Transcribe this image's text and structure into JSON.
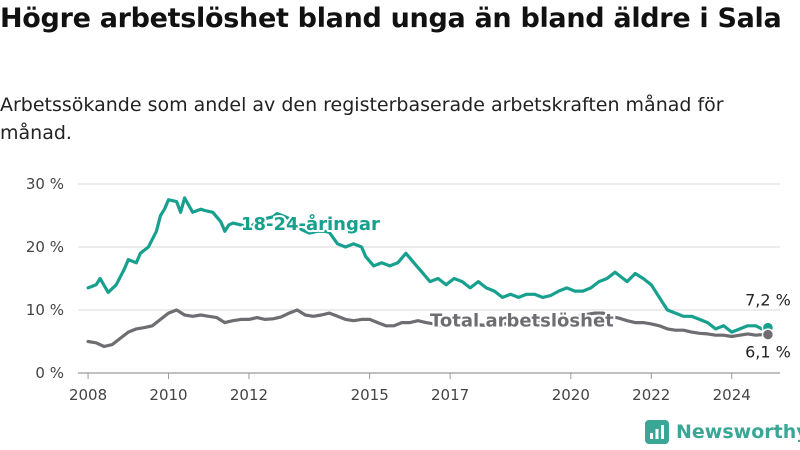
{
  "title": "Högre arbetslöshet bland unga än bland äldre i Sala",
  "subtitle": "Arbetssökande som andel av den registerbaserade arbetskraften månad för månad.",
  "brand": {
    "name": "Newsworthy",
    "color": "#3aa796"
  },
  "chart_data": {
    "type": "line",
    "ylim": [
      0,
      30
    ],
    "xlim": [
      2007.75,
      2025.2
    ],
    "y_ticks": [
      0,
      10,
      20,
      30
    ],
    "y_tick_labels": [
      "0 %",
      "10 %",
      "20 %",
      "30 %"
    ],
    "x_ticks": [
      2008,
      2010,
      2012,
      2015,
      2017,
      2020,
      2022,
      2024
    ],
    "x_tick_labels": [
      "2008",
      "2010",
      "2012",
      "2015",
      "2017",
      "2020",
      "2022",
      "2024"
    ],
    "grid": true,
    "series": [
      {
        "name": "18-24-åringar",
        "color": "#18a08f",
        "end_label": "7,2 %",
        "x": [
          2008.0,
          2008.2,
          2008.3,
          2008.5,
          2008.7,
          2008.9,
          2009.0,
          2009.2,
          2009.3,
          2009.5,
          2009.7,
          2009.8,
          2009.9,
          2010.0,
          2010.2,
          2010.3,
          2010.4,
          2010.6,
          2010.8,
          2010.9,
          2011.1,
          2011.3,
          2011.4,
          2011.5,
          2011.6,
          2011.8,
          2012.0,
          2012.2,
          2012.4,
          2012.6,
          2012.7,
          2012.9,
          2013.1,
          2013.3,
          2013.5,
          2013.7,
          2013.9,
          2014.0,
          2014.2,
          2014.4,
          2014.6,
          2014.8,
          2014.9,
          2015.1,
          2015.3,
          2015.5,
          2015.7,
          2015.9,
          2016.1,
          2016.3,
          2016.5,
          2016.7,
          2016.9,
          2017.1,
          2017.3,
          2017.5,
          2017.7,
          2017.9,
          2018.1,
          2018.3,
          2018.5,
          2018.7,
          2018.9,
          2019.1,
          2019.3,
          2019.5,
          2019.7,
          2019.9,
          2020.1,
          2020.3,
          2020.5,
          2020.7,
          2020.9,
          2021.1,
          2021.2,
          2021.4,
          2021.6,
          2021.8,
          2022.0,
          2022.2,
          2022.4,
          2022.6,
          2022.8,
          2023.0,
          2023.2,
          2023.4,
          2023.6,
          2023.8,
          2024.0,
          2024.2,
          2024.4,
          2024.6,
          2024.75,
          2024.9
        ],
        "values": [
          13.5,
          14.0,
          15.0,
          12.8,
          14.0,
          16.5,
          18.0,
          17.5,
          19.0,
          20.0,
          22.5,
          25.0,
          26.0,
          27.5,
          27.2,
          25.5,
          27.8,
          25.5,
          26.0,
          25.8,
          25.5,
          24.0,
          22.5,
          23.5,
          23.8,
          23.5,
          23.0,
          24.0,
          24.5,
          24.8,
          25.3,
          24.8,
          24.2,
          22.8,
          22.2,
          22.5,
          22.5,
          22.3,
          20.5,
          20.0,
          20.5,
          20.0,
          18.5,
          17.0,
          17.5,
          17.0,
          17.5,
          19.0,
          17.5,
          16.0,
          14.5,
          15.0,
          14.0,
          15.0,
          14.5,
          13.5,
          14.5,
          13.5,
          13.0,
          12.0,
          12.5,
          12.0,
          12.5,
          12.5,
          12.0,
          12.3,
          13.0,
          13.5,
          13.0,
          13.0,
          13.5,
          14.5,
          15.0,
          16.0,
          15.5,
          14.5,
          15.8,
          15.0,
          14.0,
          12.0,
          10.0,
          9.5,
          9.0,
          9.0,
          8.5,
          8.0,
          7.0,
          7.5,
          6.5,
          7.0,
          7.5,
          7.5,
          7.0,
          7.2
        ]
      },
      {
        "name": "Total arbetslöshet",
        "color": "#6e6e72",
        "end_label": "6,1 %",
        "x": [
          2008.0,
          2008.2,
          2008.4,
          2008.6,
          2008.8,
          2009.0,
          2009.2,
          2009.4,
          2009.6,
          2009.8,
          2010.0,
          2010.2,
          2010.4,
          2010.6,
          2010.8,
          2011.0,
          2011.2,
          2011.4,
          2011.6,
          2011.8,
          2012.0,
          2012.2,
          2012.4,
          2012.6,
          2012.8,
          2013.0,
          2013.2,
          2013.4,
          2013.6,
          2013.8,
          2014.0,
          2014.2,
          2014.4,
          2014.6,
          2014.8,
          2015.0,
          2015.2,
          2015.4,
          2015.6,
          2015.8,
          2016.0,
          2016.2,
          2016.4,
          2016.6,
          2016.8,
          2017.0,
          2017.2,
          2017.4,
          2017.6,
          2017.8,
          2018.0,
          2018.2,
          2018.4,
          2018.6,
          2018.8,
          2019.0,
          2019.2,
          2019.4,
          2019.6,
          2019.8,
          2020.0,
          2020.2,
          2020.4,
          2020.6,
          2020.8,
          2021.0,
          2021.2,
          2021.4,
          2021.6,
          2021.8,
          2022.0,
          2022.2,
          2022.4,
          2022.6,
          2022.8,
          2023.0,
          2023.2,
          2023.4,
          2023.6,
          2023.8,
          2024.0,
          2024.2,
          2024.4,
          2024.6,
          2024.75,
          2024.9
        ],
        "values": [
          5.0,
          4.8,
          4.2,
          4.5,
          5.5,
          6.5,
          7.0,
          7.2,
          7.5,
          8.5,
          9.5,
          10.0,
          9.2,
          9.0,
          9.2,
          9.0,
          8.8,
          8.0,
          8.3,
          8.5,
          8.5,
          8.8,
          8.5,
          8.6,
          8.9,
          9.5,
          10.0,
          9.2,
          9.0,
          9.2,
          9.5,
          9.0,
          8.5,
          8.3,
          8.5,
          8.5,
          8.0,
          7.5,
          7.5,
          8.0,
          8.0,
          8.3,
          8.0,
          7.8,
          7.5,
          7.8,
          7.8,
          7.8,
          7.7,
          7.6,
          7.6,
          7.8,
          7.8,
          7.9,
          7.9,
          8.0,
          8.0,
          8.0,
          8.2,
          8.5,
          8.8,
          9.0,
          9.3,
          9.5,
          9.5,
          9.0,
          8.7,
          8.3,
          8.0,
          8.0,
          7.8,
          7.5,
          7.0,
          6.8,
          6.8,
          6.5,
          6.3,
          6.2,
          6.0,
          6.0,
          5.8,
          6.0,
          6.2,
          6.0,
          6.1,
          6.1
        ]
      }
    ]
  }
}
